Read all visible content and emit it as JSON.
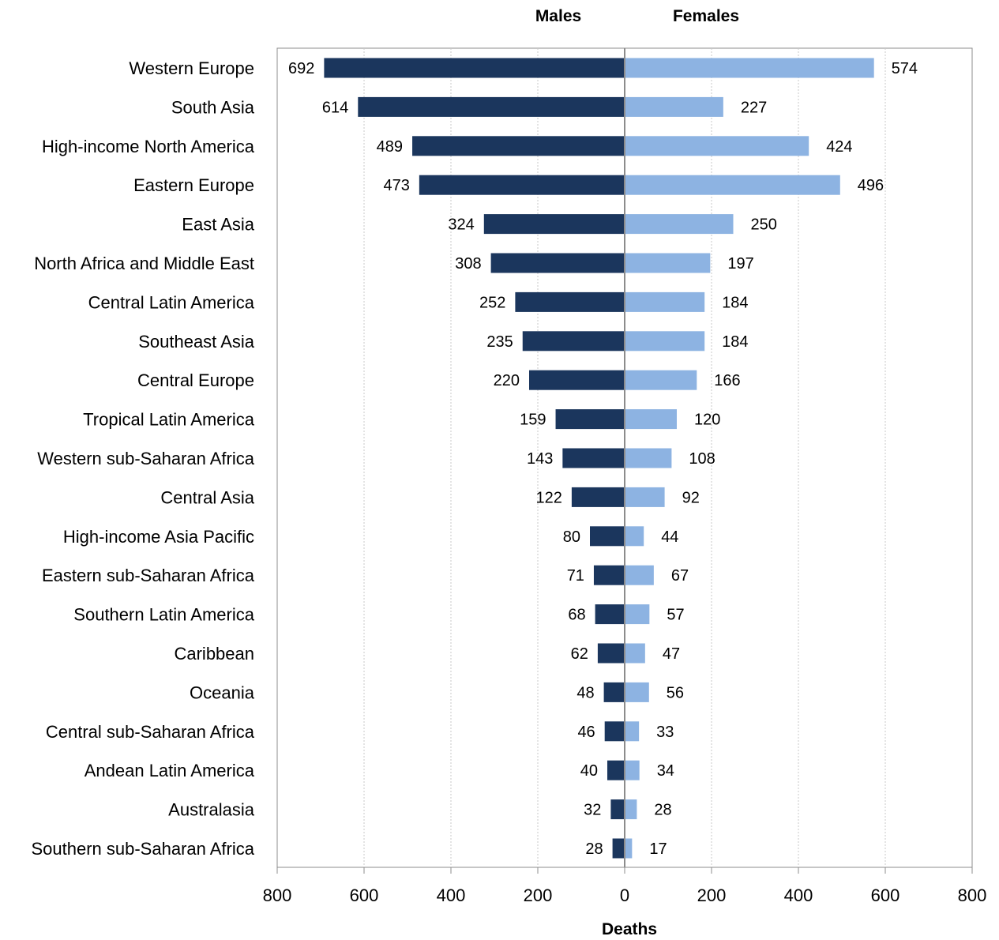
{
  "chart_data": {
    "type": "bar",
    "orientation": "horizontal-diverging",
    "headers": {
      "left": "Males",
      "right": "Females"
    },
    "xlabel": "Deaths",
    "xlim": [
      -800,
      800
    ],
    "x_ticks": [
      -800,
      -600,
      -400,
      -200,
      0,
      200,
      400,
      600,
      800
    ],
    "x_tick_labels": [
      "800",
      "600",
      "400",
      "200",
      "0",
      "200",
      "400",
      "600",
      "800"
    ],
    "grid": true,
    "categories": [
      "Western Europe",
      "South Asia",
      "High-income North America",
      "Eastern Europe",
      "East Asia",
      "North Africa and Middle East",
      "Central Latin America",
      "Southeast Asia",
      "Central Europe",
      "Tropical Latin America",
      "Western sub-Saharan Africa",
      "Central Asia",
      "High-income Asia Pacific",
      "Eastern sub-Saharan Africa",
      "Southern Latin America",
      "Caribbean",
      "Oceania",
      "Central sub-Saharan Africa",
      "Andean Latin America",
      "Australasia",
      "Southern sub-Saharan Africa"
    ],
    "series": [
      {
        "name": "Males",
        "color": "#1b365d",
        "values": [
          692,
          614,
          489,
          473,
          324,
          308,
          252,
          235,
          220,
          159,
          143,
          122,
          80,
          71,
          68,
          62,
          48,
          46,
          40,
          32,
          28
        ]
      },
      {
        "name": "Females",
        "color": "#8db3e2",
        "values": [
          574,
          227,
          424,
          496,
          250,
          197,
          184,
          184,
          166,
          120,
          108,
          92,
          44,
          67,
          57,
          47,
          56,
          33,
          34,
          28,
          17
        ]
      }
    ]
  }
}
